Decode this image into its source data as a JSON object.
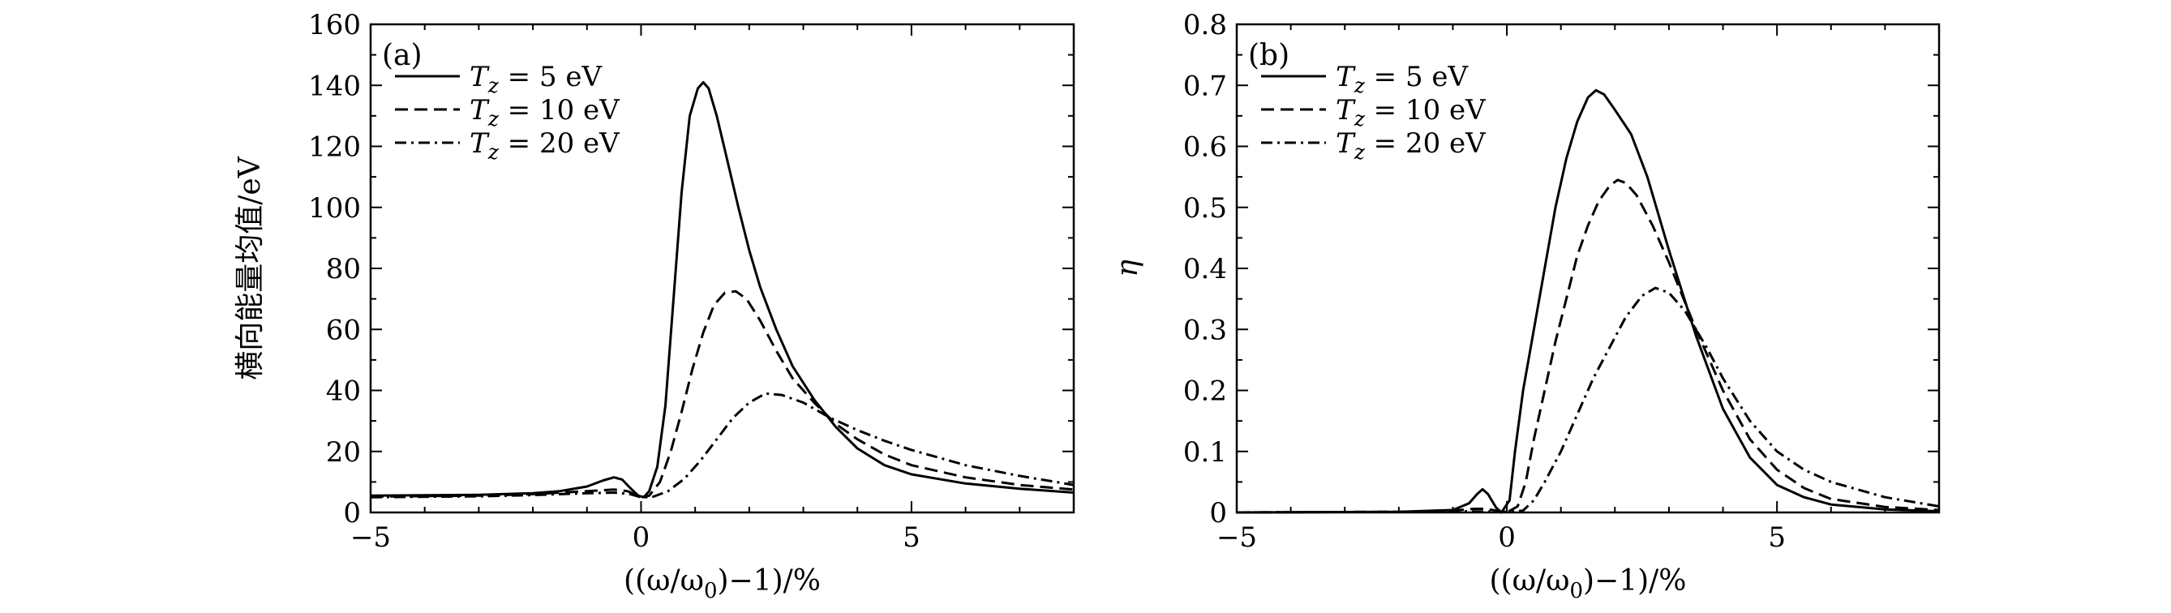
{
  "chart_data": [
    {
      "type": "line",
      "panel_label": "(a)",
      "ylabel": "横向能量均值/eV",
      "xlabel": "((ω/ω0)−1)/%",
      "xlabel_parts": {
        "pre": "((ω/ω",
        "sub": "0",
        "post": ")−1)/%"
      },
      "xlim": [
        -5,
        8
      ],
      "ylim": [
        0,
        160
      ],
      "x_ticks": [
        -5,
        0,
        5
      ],
      "x_tick_labels": [
        "−5",
        "0",
        "5"
      ],
      "y_ticks": [
        0,
        20,
        40,
        60,
        80,
        100,
        120,
        140,
        160
      ],
      "y_tick_labels": [
        "0",
        "20",
        "40",
        "60",
        "80",
        "100",
        "120",
        "140",
        "160"
      ],
      "legend_position": "top-left",
      "series": [
        {
          "name": "T_z = 5 eV",
          "legend": {
            "var": "T",
            "sub": "z",
            "rest": " = 5 eV"
          },
          "style": "solid",
          "points": [
            [
              -5,
              5.5
            ],
            [
              -3,
              5.8
            ],
            [
              -2,
              6.3
            ],
            [
              -1.5,
              7
            ],
            [
              -1,
              8.5
            ],
            [
              -0.7,
              10.5
            ],
            [
              -0.5,
              11.5
            ],
            [
              -0.35,
              10.8
            ],
            [
              -0.2,
              8
            ],
            [
              -0.05,
              5.5
            ],
            [
              0.05,
              5
            ],
            [
              0.15,
              7
            ],
            [
              0.3,
              15
            ],
            [
              0.45,
              35
            ],
            [
              0.6,
              70
            ],
            [
              0.75,
              105
            ],
            [
              0.9,
              130
            ],
            [
              1.05,
              139
            ],
            [
              1.15,
              141
            ],
            [
              1.25,
              139
            ],
            [
              1.4,
              130
            ],
            [
              1.6,
              115
            ],
            [
              1.8,
              100
            ],
            [
              2.0,
              86
            ],
            [
              2.2,
              74
            ],
            [
              2.5,
              60
            ],
            [
              2.8,
              48
            ],
            [
              3.2,
              37
            ],
            [
              3.6,
              28
            ],
            [
              4.0,
              21
            ],
            [
              4.5,
              15.5
            ],
            [
              5.0,
              12.5
            ],
            [
              6.0,
              9.5
            ],
            [
              7.0,
              7.8
            ],
            [
              8.0,
              6.5
            ]
          ]
        },
        {
          "name": "T_z = 10 eV",
          "legend": {
            "var": "T",
            "sub": "z",
            "rest": " = 10 eV"
          },
          "style": "dashed",
          "points": [
            [
              -5,
              5.2
            ],
            [
              -3,
              5.5
            ],
            [
              -2,
              6
            ],
            [
              -1,
              7
            ],
            [
              -0.5,
              7.5
            ],
            [
              -0.25,
              7
            ],
            [
              0,
              5
            ],
            [
              0.15,
              5.5
            ],
            [
              0.35,
              10
            ],
            [
              0.55,
              20
            ],
            [
              0.75,
              33
            ],
            [
              0.95,
              47
            ],
            [
              1.15,
              59
            ],
            [
              1.35,
              68
            ],
            [
              1.55,
              72
            ],
            [
              1.75,
              72.5
            ],
            [
              1.95,
              70
            ],
            [
              2.2,
              63
            ],
            [
              2.5,
              53
            ],
            [
              2.8,
              44
            ],
            [
              3.2,
              36
            ],
            [
              3.6,
              29
            ],
            [
              4.0,
              24
            ],
            [
              4.5,
              19
            ],
            [
              5.0,
              15.5
            ],
            [
              6.0,
              11.5
            ],
            [
              7.0,
              9
            ],
            [
              8.0,
              7.5
            ]
          ]
        },
        {
          "name": "T_z = 20 eV",
          "legend": {
            "var": "T",
            "sub": "z",
            "rest": " = 20 eV"
          },
          "style": "dashdot",
          "points": [
            [
              -5,
              5
            ],
            [
              -3,
              5.3
            ],
            [
              -2,
              5.7
            ],
            [
              -1,
              6.3
            ],
            [
              -0.5,
              6.5
            ],
            [
              -0.2,
              6
            ],
            [
              0,
              5
            ],
            [
              0.2,
              5
            ],
            [
              0.5,
              7
            ],
            [
              0.8,
              11
            ],
            [
              1.1,
              17
            ],
            [
              1.4,
              24
            ],
            [
              1.7,
              31
            ],
            [
              2.0,
              36
            ],
            [
              2.3,
              39
            ],
            [
              2.6,
              38.5
            ],
            [
              3.0,
              36
            ],
            [
              3.5,
              31
            ],
            [
              4.0,
              27
            ],
            [
              4.5,
              23.5
            ],
            [
              5.0,
              20.5
            ],
            [
              6.0,
              15.5
            ],
            [
              7.0,
              12
            ],
            [
              8.0,
              9
            ]
          ]
        }
      ]
    },
    {
      "type": "line",
      "panel_label": "(b)",
      "ylabel": "η",
      "xlabel": "((ω/ω0)−1)/%",
      "xlabel_parts": {
        "pre": "((ω/ω",
        "sub": "0",
        "post": ")−1)/%"
      },
      "xlim": [
        -5,
        8
      ],
      "ylim": [
        0,
        0.8
      ],
      "x_ticks": [
        -5,
        0,
        5
      ],
      "x_tick_labels": [
        "−5",
        "0",
        "5"
      ],
      "y_ticks": [
        0,
        0.1,
        0.2,
        0.3,
        0.4,
        0.5,
        0.6,
        0.7,
        0.8
      ],
      "y_tick_labels": [
        "0",
        "0.1",
        "0.2",
        "0.3",
        "0.4",
        "0.5",
        "0.6",
        "0.7",
        "0.8"
      ],
      "legend_position": "top-left",
      "series": [
        {
          "name": "T_z = 5 eV",
          "legend": {
            "var": "T",
            "sub": "z",
            "rest": " = 5 eV"
          },
          "style": "solid",
          "points": [
            [
              -5,
              0
            ],
            [
              -2,
              0.001
            ],
            [
              -1,
              0.004
            ],
            [
              -0.7,
              0.015
            ],
            [
              -0.55,
              0.03
            ],
            [
              -0.45,
              0.038
            ],
            [
              -0.35,
              0.03
            ],
            [
              -0.2,
              0.008
            ],
            [
              -0.1,
              0
            ],
            [
              0.05,
              0.02
            ],
            [
              0.15,
              0.1
            ],
            [
              0.3,
              0.2
            ],
            [
              0.5,
              0.3
            ],
            [
              0.7,
              0.4
            ],
            [
              0.9,
              0.5
            ],
            [
              1.1,
              0.58
            ],
            [
              1.3,
              0.64
            ],
            [
              1.5,
              0.68
            ],
            [
              1.65,
              0.692
            ],
            [
              1.8,
              0.685
            ],
            [
              2.0,
              0.66
            ],
            [
              2.3,
              0.62
            ],
            [
              2.6,
              0.55
            ],
            [
              3.0,
              0.43
            ],
            [
              3.5,
              0.29
            ],
            [
              4.0,
              0.17
            ],
            [
              4.5,
              0.09
            ],
            [
              5.0,
              0.045
            ],
            [
              5.5,
              0.025
            ],
            [
              6.0,
              0.013
            ],
            [
              7.0,
              0.005
            ],
            [
              8.0,
              0.002
            ]
          ]
        },
        {
          "name": "T_z = 10 eV",
          "legend": {
            "var": "T",
            "sub": "z",
            "rest": " = 10 eV"
          },
          "style": "dashed",
          "points": [
            [
              -5,
              0
            ],
            [
              -2,
              0.001
            ],
            [
              -1,
              0.003
            ],
            [
              -0.6,
              0.006
            ],
            [
              -0.4,
              0.006
            ],
            [
              -0.2,
              0.003
            ],
            [
              0,
              0
            ],
            [
              0.2,
              0.01
            ],
            [
              0.35,
              0.05
            ],
            [
              0.5,
              0.12
            ],
            [
              0.7,
              0.2
            ],
            [
              0.9,
              0.28
            ],
            [
              1.1,
              0.35
            ],
            [
              1.3,
              0.42
            ],
            [
              1.5,
              0.47
            ],
            [
              1.7,
              0.51
            ],
            [
              1.9,
              0.535
            ],
            [
              2.05,
              0.545
            ],
            [
              2.2,
              0.54
            ],
            [
              2.4,
              0.52
            ],
            [
              2.7,
              0.47
            ],
            [
              3.0,
              0.41
            ],
            [
              3.5,
              0.3
            ],
            [
              4.0,
              0.2
            ],
            [
              4.5,
              0.12
            ],
            [
              5.0,
              0.07
            ],
            [
              5.5,
              0.04
            ],
            [
              6.0,
              0.022
            ],
            [
              7.0,
              0.009
            ],
            [
              8.0,
              0.004
            ]
          ]
        },
        {
          "name": "T_z = 20 eV",
          "legend": {
            "var": "T",
            "sub": "z",
            "rest": " = 20 eV"
          },
          "style": "dashdot",
          "points": [
            [
              -5,
              0
            ],
            [
              -2,
              0.001
            ],
            [
              -1,
              0.002
            ],
            [
              0,
              0.001
            ],
            [
              0.3,
              0.003
            ],
            [
              0.5,
              0.02
            ],
            [
              0.7,
              0.05
            ],
            [
              1.0,
              0.1
            ],
            [
              1.3,
              0.16
            ],
            [
              1.6,
              0.22
            ],
            [
              1.9,
              0.27
            ],
            [
              2.2,
              0.32
            ],
            [
              2.5,
              0.355
            ],
            [
              2.75,
              0.368
            ],
            [
              3.0,
              0.36
            ],
            [
              3.3,
              0.33
            ],
            [
              3.7,
              0.27
            ],
            [
              4.0,
              0.22
            ],
            [
              4.5,
              0.15
            ],
            [
              5.0,
              0.1
            ],
            [
              5.5,
              0.07
            ],
            [
              6.0,
              0.05
            ],
            [
              7.0,
              0.025
            ],
            [
              8.0,
              0.01
            ]
          ]
        }
      ]
    }
  ]
}
